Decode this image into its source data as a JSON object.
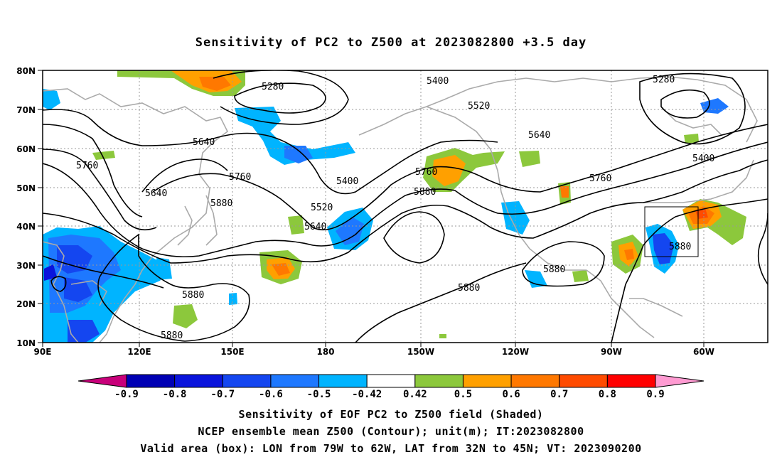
{
  "title": "Sensitivity of PC2 to Z500 at 2023082800 +3.5 day",
  "lat_labels": [
    "80N",
    "70N",
    "60N",
    "50N",
    "40N",
    "30N",
    "20N",
    "10N"
  ],
  "lon_labels": [
    "90E",
    "120E",
    "150E",
    "180",
    "150W",
    "120W",
    "90W",
    "60W"
  ],
  "contour_labels": [
    {
      "text": "5280",
      "id": "c5280-a"
    },
    {
      "text": "5280",
      "id": "c5280-b"
    },
    {
      "text": "5400",
      "id": "c5400-a"
    },
    {
      "text": "5400",
      "id": "c5400-b"
    },
    {
      "text": "5400",
      "id": "c5400-c"
    },
    {
      "text": "5520",
      "id": "c5520-a"
    },
    {
      "text": "5520",
      "id": "c5520-b"
    },
    {
      "text": "5640",
      "id": "c5640-a"
    },
    {
      "text": "5640",
      "id": "c5640-b"
    },
    {
      "text": "5640",
      "id": "c5640-c"
    },
    {
      "text": "5640",
      "id": "c5640-d"
    },
    {
      "text": "5760",
      "id": "c5760-a"
    },
    {
      "text": "5760",
      "id": "c5760-b"
    },
    {
      "text": "5760",
      "id": "c5760-c"
    },
    {
      "text": "5760",
      "id": "c5760-d"
    },
    {
      "text": "5880",
      "id": "c5880-a"
    },
    {
      "text": "5880",
      "id": "c5880-b"
    },
    {
      "text": "5880",
      "id": "c5880-c"
    },
    {
      "text": "5880",
      "id": "c5880-d"
    },
    {
      "text": "5880",
      "id": "c5880-e"
    },
    {
      "text": "5880",
      "id": "c5880-f"
    },
    {
      "text": "5880",
      "id": "c5880-g"
    }
  ],
  "colorbar": {
    "labels": [
      "-0.9",
      "-0.8",
      "-0.7",
      "-0.6",
      "-0.5",
      "-0.42",
      "0.42",
      "0.5",
      "0.6",
      "0.7",
      "0.8",
      "0.9"
    ],
    "colors": {
      "below": "#c8007a",
      "bins": [
        "#0000b4",
        "#0a14dc",
        "#1446f0",
        "#1e78ff",
        "#00b4ff",
        "#ffffff",
        "#8cc83c",
        "#ffa000",
        "#ff7800",
        "#ff4b00",
        "#ff0000"
      ],
      "above": "#ff9bd2"
    }
  },
  "shading_colors": {
    "neg_light": "#00b4ff",
    "neg_mid": "#1e78ff",
    "neg_dark": "#1446f0",
    "neg_darkest": "#0a14dc",
    "pos_green": "#8cc83c",
    "pos_orange": "#ffa000",
    "pos_dark_orange": "#ff7800",
    "pos_red": "#ff4b00"
  },
  "box_region": {
    "lon_min": "79W",
    "lon_max": "62W",
    "lat_min": "32N",
    "lat_max": "45N"
  },
  "caption": {
    "line1": "Sensitivity of EOF PC2 to Z500 field (Shaded)",
    "line2": "NCEP ensemble mean Z500 (Contour); unit(m); IT:2023082800",
    "line3": "Valid area (box): LON from 79W to 62W, LAT from 32N to 45N; VT: 2023090200"
  }
}
